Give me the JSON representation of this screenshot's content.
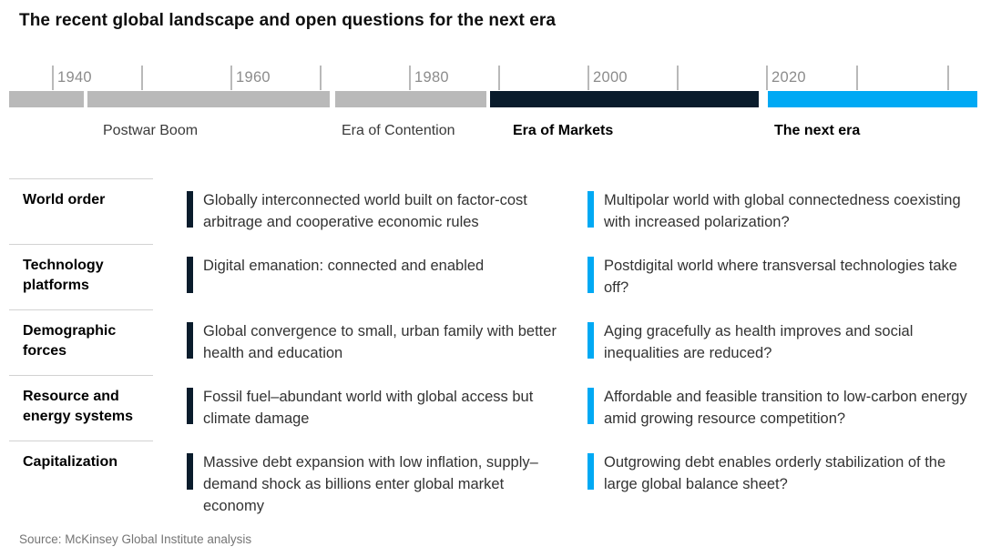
{
  "title": "The recent global landscape and open questions for the next era",
  "timeline": {
    "year_labels": [
      "1940",
      "1960",
      "1980",
      "2000",
      "2020"
    ],
    "eras": [
      {
        "label": "Postwar Boom",
        "emphasis": false
      },
      {
        "label": "Era of Contention",
        "emphasis": false
      },
      {
        "label": "Era of Markets",
        "emphasis": true
      },
      {
        "label": "The next era",
        "emphasis": true
      }
    ],
    "colors": {
      "past_gray": "#b9b9b9",
      "markets_navy": "#0a1c2c",
      "next_blue": "#00a9f4"
    }
  },
  "rows": [
    {
      "label": "World order",
      "markets": "Globally interconnected world built on factor-cost arbitrage and cooperative economic rules",
      "next": "Multipolar world with global connectedness coexisting with increased polarization?"
    },
    {
      "label": "Technology platforms",
      "markets": "Digital emanation: connected and enabled",
      "next": "Postdigital world where transversal technologies take off?"
    },
    {
      "label": "Demographic forces",
      "markets": "Global convergence to small, urban family with better health and education",
      "next": "Aging gracefully as health improves and social inequalities are reduced?"
    },
    {
      "label": "Resource and energy systems",
      "markets": "Fossil fuel–abundant world with global access but climate damage",
      "next": "Affordable and feasible transition to low-carbon energy amid growing resource competition?"
    },
    {
      "label": "Capitalization",
      "markets": "Massive debt expansion with low inflation, supply–demand shock as billions enter global market economy",
      "next": "Outgrowing debt enables orderly stabilization of the large global balance sheet?"
    }
  ],
  "source": "Source: McKinsey Global Institute analysis"
}
